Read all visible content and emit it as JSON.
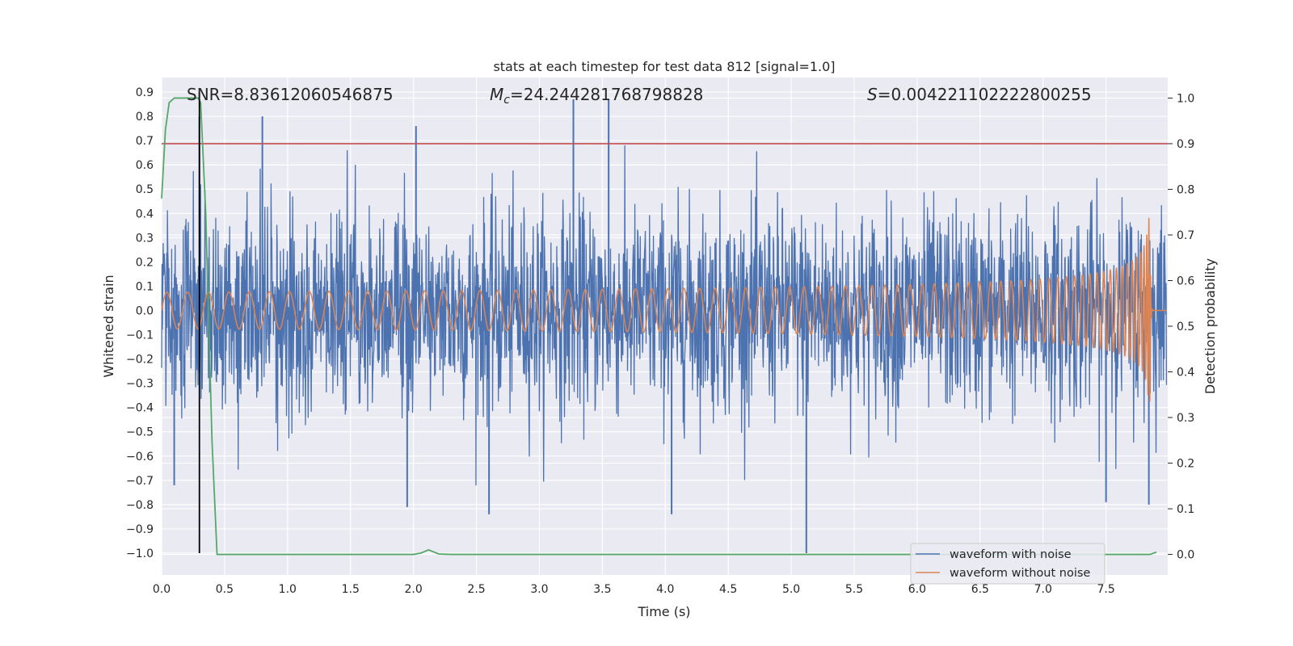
{
  "chart_data": {
    "type": "line",
    "title": "stats at each timestep for test data 812 [signal=1.0]",
    "xlabel": "Time (s)",
    "ylabel": "Whitened strain",
    "y2label": "Detection probability",
    "xlim": [
      0.0,
      7.99
    ],
    "ylim": [
      -1.09,
      0.96
    ],
    "y2lim": [
      -0.045,
      1.045
    ],
    "xticks": [
      "0.0",
      "0.5",
      "1.0",
      "1.5",
      "2.0",
      "2.5",
      "3.0",
      "3.5",
      "4.0",
      "4.5",
      "5.0",
      "5.5",
      "6.0",
      "6.5",
      "7.0",
      "7.5"
    ],
    "xtick_values": [
      0.0,
      0.5,
      1.0,
      1.5,
      2.0,
      2.5,
      3.0,
      3.5,
      4.0,
      4.5,
      5.0,
      5.5,
      6.0,
      6.5,
      7.0,
      7.5
    ],
    "yticks": [
      "0.9",
      "0.8",
      "0.7",
      "0.6",
      "0.5",
      "0.4",
      "0.3",
      "0.2",
      "0.1",
      "0.0",
      "−0.1",
      "−0.2",
      "−0.3",
      "−0.4",
      "−0.5",
      "−0.6",
      "−0.7",
      "−0.8",
      "−0.9",
      "−1.0"
    ],
    "ytick_values": [
      0.9,
      0.8,
      0.7,
      0.6,
      0.5,
      0.4,
      0.3,
      0.2,
      0.1,
      0.0,
      -0.1,
      -0.2,
      -0.3,
      -0.4,
      -0.5,
      -0.6,
      -0.7,
      -0.8,
      -0.9,
      -1.0
    ],
    "y2ticks": [
      "1.0",
      "0.9",
      "0.8",
      "0.7",
      "0.6",
      "0.5",
      "0.4",
      "0.3",
      "0.2",
      "0.1",
      "0.0"
    ],
    "y2tick_values": [
      1.0,
      0.9,
      0.8,
      0.7,
      0.6,
      0.5,
      0.4,
      0.3,
      0.2,
      0.1,
      0.0
    ],
    "annotations": {
      "snr": "SNR=8.83612060546875",
      "mc_prefix": "M",
      "mc_sub": "c",
      "mc_value": "=24.244281768798828",
      "s_prefix": "S",
      "s_value": "=0.004221102222800255"
    },
    "threshold": {
      "value": 0.9,
      "axis": "right",
      "color": "#c44e52"
    },
    "marker_time": 0.3,
    "series": [
      {
        "name": "waveform with noise",
        "color": "#4c72b0",
        "kind": "noise",
        "typical_amplitude": 0.28,
        "max_abs": 1.0,
        "peaks": [
          [
            0.8,
            0.8
          ],
          [
            3.27,
            0.87
          ],
          [
            3.55,
            0.87
          ],
          [
            2.02,
            0.76
          ],
          [
            0.3,
            0.8
          ],
          [
            5.12,
            -1.0
          ],
          [
            1.95,
            -0.81
          ],
          [
            2.6,
            -0.84
          ],
          [
            4.05,
            -0.84
          ],
          [
            7.5,
            -0.79
          ],
          [
            0.1,
            -0.72
          ],
          [
            7.84,
            -0.8
          ]
        ]
      },
      {
        "name": "waveform without noise",
        "color": "#dd8452",
        "kind": "chirp",
        "t_merge": 7.85,
        "peak_amplitude": 0.38
      },
      {
        "name": "detection probability",
        "color": "#55a868",
        "axis": "right",
        "x": [
          0.0,
          0.03,
          0.06,
          0.1,
          0.2,
          0.29,
          0.31,
          0.35,
          0.4,
          0.44,
          2.0,
          2.06,
          2.12,
          2.2,
          2.3,
          7.85,
          7.9
        ],
        "values": [
          0.78,
          0.93,
          0.99,
          1.0,
          1.0,
          1.0,
          0.99,
          0.75,
          0.25,
          0.0,
          0.0,
          0.003,
          0.01,
          0.001,
          0.0,
          0.0,
          0.005
        ]
      }
    ],
    "legend": [
      "waveform with noise",
      "waveform without noise"
    ],
    "legend_position": "lower-right",
    "grid": true
  }
}
